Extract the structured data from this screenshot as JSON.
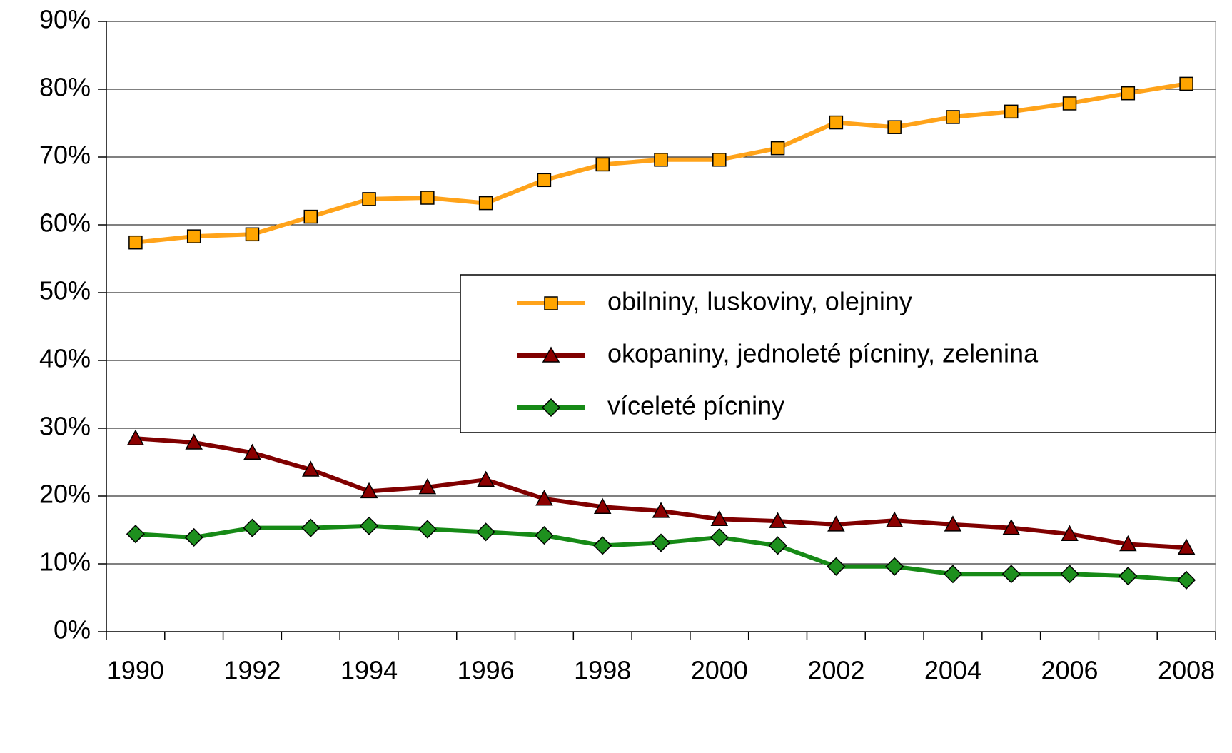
{
  "chart_data": {
    "type": "line",
    "categories": [
      "1990",
      null,
      "1992",
      null,
      "1994",
      null,
      "1996",
      null,
      "1998",
      null,
      "2000",
      null,
      "2002",
      null,
      "2004",
      null,
      "2006",
      null,
      "2008"
    ],
    "series": [
      {
        "name": "obilniny, luskoviny, olejniny",
        "color": "#FFA31A",
        "marker": "square",
        "marker_color": "#FFA500",
        "values": [
          57.4,
          58.3,
          58.6,
          61.2,
          63.8,
          64.0,
          63.2,
          66.6,
          68.9,
          69.6,
          69.6,
          71.3,
          75.1,
          74.4,
          75.9,
          76.7,
          77.9,
          79.4,
          80.8
        ]
      },
      {
        "name": "okopaniny, jednoleté pícniny, zelenina",
        "color": "#800000",
        "marker": "triangle",
        "marker_color": "#8B0000",
        "values": [
          28.5,
          27.9,
          26.4,
          23.9,
          20.7,
          21.3,
          22.4,
          19.6,
          18.4,
          17.8,
          16.6,
          16.3,
          15.8,
          16.4,
          15.8,
          15.3,
          14.4,
          12.9,
          12.4
        ]
      },
      {
        "name": "víceleté pícniny",
        "color": "#168A16",
        "marker": "diamond",
        "marker_color": "#1E901E",
        "values": [
          14.4,
          13.9,
          15.3,
          15.3,
          15.6,
          15.1,
          14.7,
          14.2,
          12.7,
          13.1,
          13.9,
          12.7,
          9.6,
          9.6,
          8.5,
          8.5,
          8.5,
          8.2,
          7.6
        ]
      }
    ],
    "ylim": [
      0,
      90
    ],
    "yticks": [
      {
        "value": 0,
        "label": "0%"
      },
      {
        "value": 10,
        "label": "10%"
      },
      {
        "value": 20,
        "label": "20%"
      },
      {
        "value": 30,
        "label": "30%"
      },
      {
        "value": 40,
        "label": "40%"
      },
      {
        "value": 50,
        "label": "50%"
      },
      {
        "value": 60,
        "label": "60%"
      },
      {
        "value": 70,
        "label": "70%"
      },
      {
        "value": 80,
        "label": "80%"
      },
      {
        "value": 90,
        "label": "90%"
      }
    ],
    "grid": true,
    "legend": "right"
  }
}
